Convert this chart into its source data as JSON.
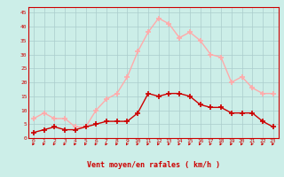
{
  "x": [
    0,
    1,
    2,
    3,
    4,
    5,
    6,
    7,
    8,
    9,
    10,
    11,
    12,
    13,
    14,
    15,
    16,
    17,
    18,
    19,
    20,
    21,
    22,
    23
  ],
  "vent_moyen": [
    2,
    3,
    4,
    3,
    3,
    4,
    5,
    6,
    6,
    6,
    9,
    16,
    15,
    16,
    16,
    15,
    12,
    11,
    11,
    9,
    9,
    9,
    6,
    4
  ],
  "rafales": [
    7,
    9,
    7,
    7,
    4,
    4,
    10,
    14,
    16,
    22,
    31,
    38,
    43,
    41,
    36,
    38,
    35,
    30,
    29,
    20,
    22,
    18,
    16,
    16
  ],
  "color_moyen": "#cc0000",
  "color_rafales": "#ffaaaa",
  "bg_color": "#cceee8",
  "grid_color": "#aacccc",
  "xlabel": "Vent moyen/en rafales ( km/h )",
  "ylabel_ticks": [
    0,
    5,
    10,
    15,
    20,
    25,
    30,
    35,
    40,
    45
  ],
  "xlim": [
    -0.5,
    23.5
  ],
  "ylim": [
    0,
    47
  ]
}
